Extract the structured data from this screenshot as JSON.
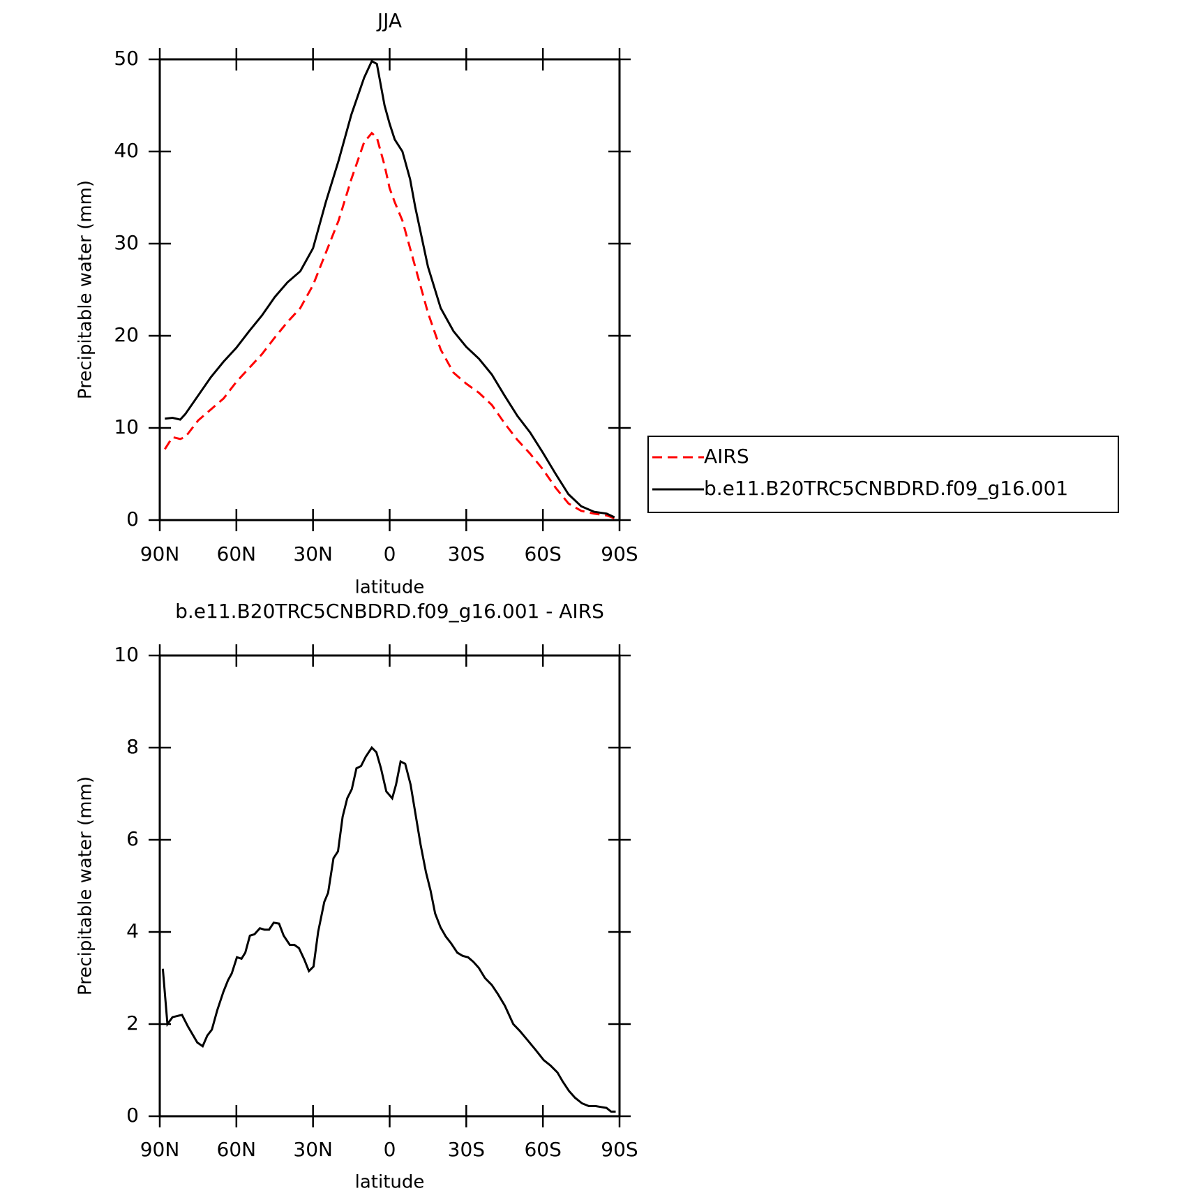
{
  "chart_data": [
    {
      "type": "line",
      "title": "JJA",
      "xlabel": "latitude",
      "ylabel": "Precipitable water (mm)",
      "x": [
        88,
        85,
        82,
        80,
        75,
        70,
        65,
        60,
        55,
        50,
        45,
        40,
        35,
        30,
        25,
        20,
        15,
        10,
        7,
        5,
        2,
        0,
        -2,
        -5,
        -8,
        -10,
        -15,
        -20,
        -25,
        -30,
        -35,
        -40,
        -45,
        -50,
        -55,
        -60,
        -65,
        -70,
        -75,
        -80,
        -85,
        -88
      ],
      "series": [
        {
          "name": "AIRS",
          "color": "#ff0000",
          "dash": true,
          "values": [
            7.7,
            9.0,
            8.8,
            9.0,
            10.8,
            12,
            13.2,
            15,
            16.5,
            18,
            19.8,
            21.5,
            23,
            25.5,
            29,
            32.5,
            37,
            41,
            42,
            41.5,
            38.5,
            36,
            34.5,
            32.5,
            29.5,
            27.5,
            22.5,
            18.5,
            16,
            14.8,
            13.8,
            12.5,
            10.5,
            8.7,
            7.2,
            5.5,
            3.5,
            1.8,
            1.0,
            0.7,
            0.5,
            0.2
          ]
        },
        {
          "name": "b.e11.B20TRC5CNBDRD.f09_g16.001",
          "color": "#000000",
          "dash": false,
          "values": [
            11.0,
            11.1,
            10.9,
            11.5,
            13.5,
            15.5,
            17.2,
            18.7,
            20.5,
            22.2,
            24.2,
            25.8,
            27,
            29.5,
            34.5,
            39,
            44,
            48,
            49.8,
            49.5,
            45,
            43,
            41.3,
            40,
            37,
            34,
            27.5,
            23,
            20.5,
            18.8,
            17.5,
            15.8,
            13.5,
            11.3,
            9.5,
            7.3,
            5,
            2.8,
            1.5,
            0.9,
            0.7,
            0.3
          ]
        }
      ],
      "xlim": [
        90,
        -90
      ],
      "xticks": [
        {
          "value": 90,
          "label": "90N"
        },
        {
          "value": 60,
          "label": "60N"
        },
        {
          "value": 30,
          "label": "30N"
        },
        0,
        {
          "value": -30,
          "label": "30S"
        },
        {
          "value": -60,
          "label": "60S"
        },
        {
          "value": -90,
          "label": "90S"
        }
      ],
      "ylim": [
        0,
        50
      ],
      "yticks": [
        0,
        10,
        20,
        30,
        40,
        50
      ],
      "legend": "right"
    },
    {
      "type": "line",
      "title": "b.e11.B20TRC5CNBDRD.f09_g16.001 - AIRS",
      "xlabel": "latitude",
      "ylabel": "Precipitable water (mm)",
      "x": [
        88.8,
        87,
        85,
        81.3,
        79,
        75.3,
        73.2,
        71.4,
        69.6,
        67.5,
        65.1,
        63.3,
        61.8,
        59.8,
        58,
        56.5,
        54.7,
        52.9,
        50.8,
        49,
        47.2,
        45.4,
        43.3,
        41.5,
        39.1,
        37.3,
        35.5,
        33.4,
        31.6,
        29.8,
        28,
        25.6,
        24.1,
        22,
        20.2,
        18.4,
        16.6,
        14.8,
        13,
        11.2,
        9.4,
        7,
        5.2,
        3.4,
        1.3,
        -1,
        -2.5,
        -4.3,
        -6.1,
        -8.2,
        -10,
        -12.1,
        -14.2,
        -16,
        -17.8,
        -19.9,
        -22,
        -24.1,
        -26.5,
        -28.6,
        -30.7,
        -32.8,
        -34.9,
        -37.3,
        -40,
        -42.4,
        -45.1,
        -48.4,
        -51,
        -54,
        -57,
        -60.3,
        -63,
        -65.7,
        -67.8,
        -70.2,
        -72.6,
        -75.3,
        -78,
        -80.7,
        -82.8,
        -84.9,
        -86.7,
        -88.5
      ],
      "series": [
        {
          "color": "#000000",
          "dash": false,
          "values": [
            3.2,
            2.0,
            2.15,
            2.2,
            1.95,
            1.6,
            1.52,
            1.75,
            1.88,
            2.3,
            2.7,
            2.95,
            3.1,
            3.45,
            3.42,
            3.55,
            3.92,
            3.95,
            4.08,
            4.05,
            4.05,
            4.2,
            4.18,
            3.92,
            3.72,
            3.72,
            3.65,
            3.4,
            3.15,
            3.25,
            4.0,
            4.65,
            4.85,
            5.6,
            5.75,
            6.5,
            6.9,
            7.1,
            7.55,
            7.6,
            7.8,
            8.0,
            7.9,
            7.55,
            7.05,
            6.9,
            7.2,
            7.7,
            7.65,
            7.2,
            6.6,
            5.9,
            5.3,
            4.9,
            4.4,
            4.1,
            3.9,
            3.75,
            3.55,
            3.48,
            3.45,
            3.35,
            3.22,
            3.0,
            2.85,
            2.65,
            2.4,
            2.0,
            1.85,
            1.65,
            1.45,
            1.22,
            1.1,
            0.95,
            0.75,
            0.55,
            0.4,
            0.28,
            0.22,
            0.22,
            0.2,
            0.18,
            0.1,
            0.1
          ]
        }
      ],
      "xlim": [
        90,
        -90
      ],
      "xticks": [
        {
          "value": 90,
          "label": "90N"
        },
        {
          "value": 60,
          "label": "60N"
        },
        {
          "value": 30,
          "label": "30N"
        },
        0,
        {
          "value": -30,
          "label": "30S"
        },
        {
          "value": -60,
          "label": "60S"
        },
        {
          "value": -90,
          "label": "90S"
        }
      ],
      "ylim": [
        0,
        10
      ],
      "yticks": [
        0,
        2,
        4,
        6,
        8,
        10
      ]
    }
  ]
}
